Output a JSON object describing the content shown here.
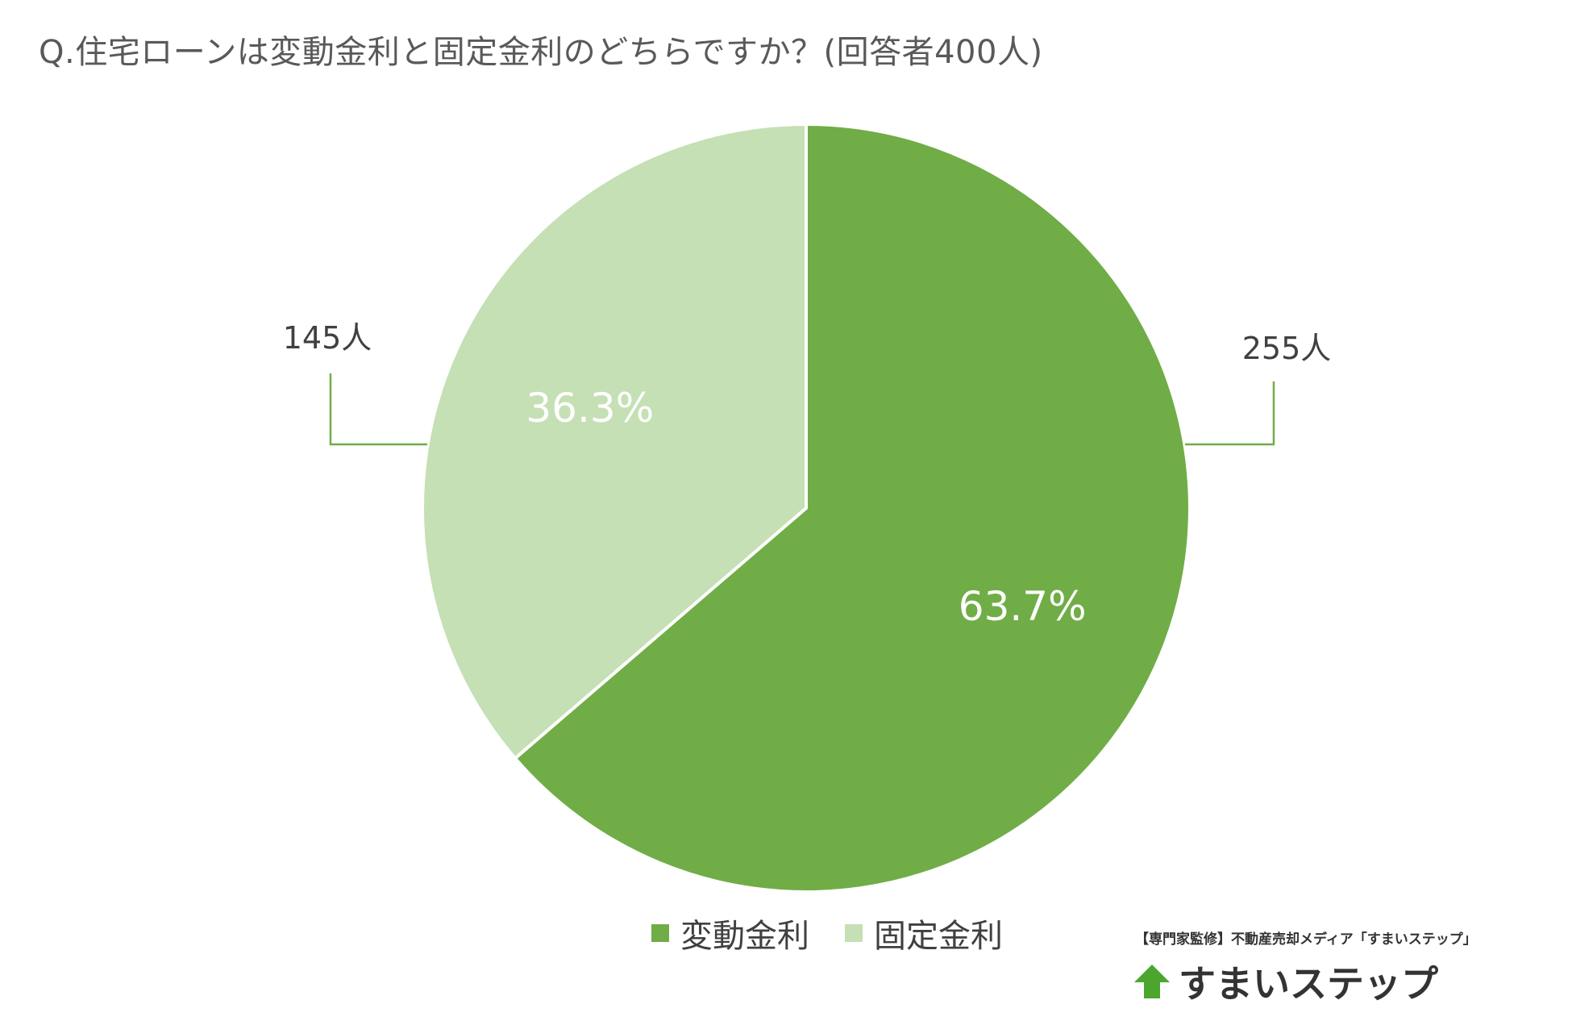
{
  "title": "Q.住宅ローンは変動金利と固定金利のどちらですか？(回答者400人)",
  "colors": {
    "variable": "#70AD47",
    "fixed": "#C5E0B4",
    "leader": "#70AD47"
  },
  "chart_data": {
    "type": "pie",
    "title": "Q.住宅ローンは変動金利と固定金利のどちらですか？(回答者400人)",
    "categories": [
      "変動金利",
      "固定金利"
    ],
    "values": [
      63.7,
      36.3
    ],
    "count_labels": [
      "255人",
      "145人"
    ],
    "percent_labels": [
      "63.7%",
      "36.3%"
    ],
    "start_angle_deg": 0,
    "direction": "clockwise",
    "legend_position": "bottom"
  },
  "legend": [
    {
      "label": "変動金利",
      "color": "#70AD47"
    },
    {
      "label": "固定金利",
      "color": "#C5E0B4"
    }
  ],
  "credit": "【専門家監修】不動産売却メディア「すまいステップ」",
  "logo": {
    "text": "すまいステップ",
    "icon": "up-arrow-house-icon",
    "icon_color": "#4CA62E"
  }
}
